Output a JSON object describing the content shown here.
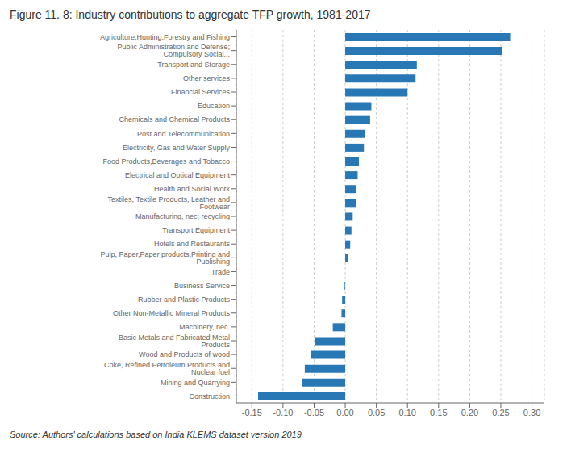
{
  "chart_data": {
    "type": "bar",
    "orientation": "horizontal",
    "title": "Figure 11. 8: Industry contributions to aggregate TFP growth, 1981-2017",
    "annotations": [
      "Source: Authors' calculations based on India KLEMS dataset version 2019"
    ],
    "categories": [
      "Agriculture,Hunting,Forestry and Fishing",
      "Public Administration and Defense; Compulsory Social...",
      "Transport and Storage",
      "Other services",
      "Financial Services",
      "Education",
      "Chemicals and  Chemical Products",
      "Post and Telecommunication",
      "Electricity, Gas and Water Supply",
      "Food Products,Beverages and Tobacco",
      "Electrical and Optical Equipment",
      "Health and Social Work",
      "Textiles, Textile Products, Leather and Footwear",
      "Manufacturing, nec; recycling",
      "Transport Equipment",
      "Hotels and Restaurants",
      "Pulp, Paper,Paper products,Printing and Publishing",
      "Trade",
      "Business Service",
      "Rubber and Plastic Products",
      "Other Non-Metallic Mineral Products",
      "Machinery, nec.",
      "Basic Metals and Fabricated Metal Products",
      "Wood and Products of wood",
      "Coke, Refined Petroleum Products and Nuclear fuel",
      "Mining and Quarrying",
      "Construction"
    ],
    "values": [
      0.265,
      0.252,
      0.115,
      0.113,
      0.1,
      0.042,
      0.04,
      0.032,
      0.03,
      0.022,
      0.02,
      0.018,
      0.017,
      0.012,
      0.01,
      0.008,
      0.005,
      0.0,
      -0.001,
      -0.005,
      -0.006,
      -0.02,
      -0.048,
      -0.055,
      -0.065,
      -0.07,
      -0.14
    ],
    "color": "#2878b5",
    "xlim": [
      -0.175,
      0.32
    ],
    "xticks": [
      -0.15,
      {
        "value": -0.1,
        "label": "-0.10"
      },
      -0.05,
      {
        "value": 0,
        "label": "0.00"
      },
      0.05,
      {
        "value": 0.1,
        "label": "0.10"
      },
      0.15,
      {
        "value": 0.2,
        "label": "0.20"
      },
      0.25,
      {
        "value": 0.3,
        "label": "0.30"
      }
    ],
    "grid": true
  }
}
